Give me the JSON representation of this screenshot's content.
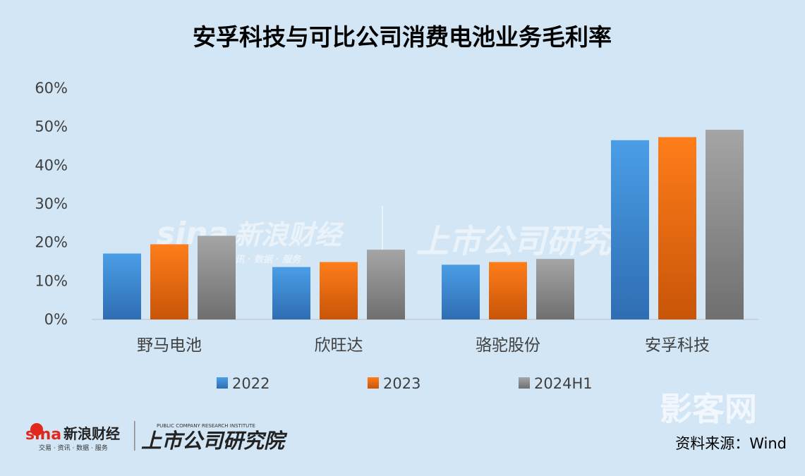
{
  "chart_data": {
    "type": "bar",
    "title": "安孚科技与可比公司消费电池业务毛利率",
    "categories": [
      "野马电池",
      "欣旺达",
      "骆驼股份",
      "安孚科技"
    ],
    "series": [
      {
        "name": "2022",
        "values": [
          17.1,
          13.6,
          14.2,
          46.5
        ]
      },
      {
        "name": "2023",
        "values": [
          19.5,
          14.9,
          14.9,
          47.3
        ]
      },
      {
        "name": "2024H1",
        "values": [
          21.7,
          18.1,
          15.7,
          49.2
        ]
      }
    ],
    "yticks": [
      "0%",
      "10%",
      "20%",
      "30%",
      "40%",
      "50%",
      "60%"
    ],
    "ylim": [
      0,
      60
    ],
    "legend_position": "bottom",
    "source_note": "资料来源：Wind"
  },
  "watermark": {
    "sina_logo": "sina",
    "sina_name": "新浪财经",
    "sina_sub": "交易 · 资讯 · 数据 · 服务",
    "research_name": "上市公司研究院",
    "research_en": "PUBLIC COMPANY RESEARCH INSTITUTE",
    "corner_logo": "影客网"
  },
  "colors": {
    "background": "#d3e6f5",
    "series": [
      "#3d8fd8",
      "#ee6f10",
      "#999999"
    ]
  }
}
